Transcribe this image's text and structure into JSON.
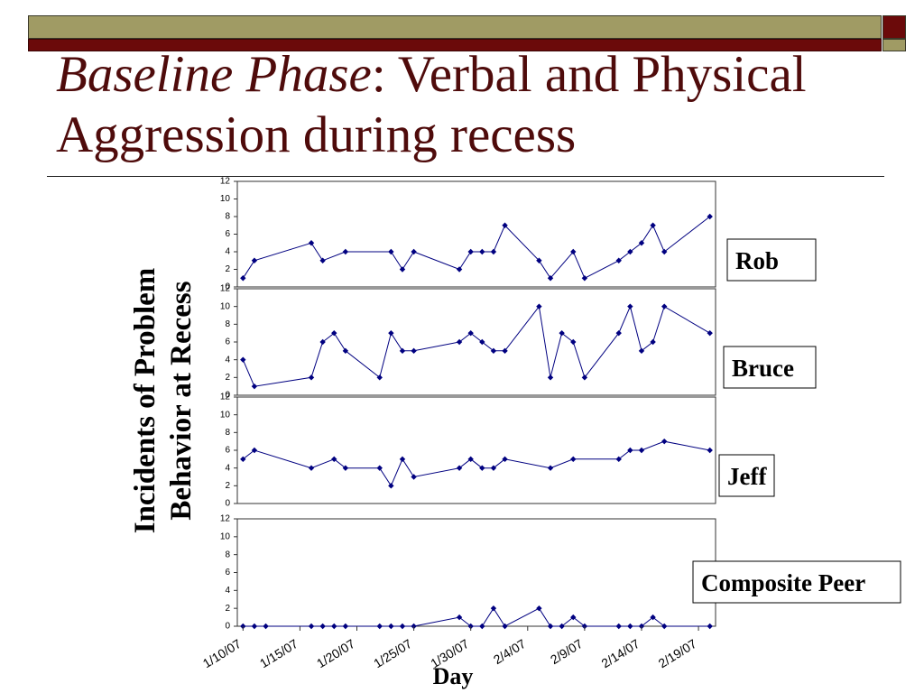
{
  "slide": {
    "title_italic": "Baseline Phase",
    "title_rest": ": Verbal and Physical Aggression during recess"
  },
  "colors": {
    "title": "#4f0b0b",
    "header_olive": "#a09b64",
    "header_maroon": "#6b0a0a",
    "series": "#000080"
  },
  "chart_data": {
    "type": "line",
    "xlabel": "Day",
    "ylabel": [
      "Incidents of Problem",
      "Behavior at Recess"
    ],
    "xlim": [
      "1/10/07",
      "2/20/07"
    ],
    "ylim": [
      0,
      12
    ],
    "x_ticks": [
      "1/10/07",
      "1/15/07",
      "1/20/07",
      "1/25/07",
      "1/30/07",
      "2/4/07",
      "2/9/07",
      "2/14/07",
      "2/19/07"
    ],
    "y_ticks": [
      0,
      2,
      4,
      6,
      8,
      10,
      12
    ],
    "grid": false,
    "series": [
      {
        "name": "Rob",
        "x": [
          "1/10/07",
          "1/11/07",
          "1/16/07",
          "1/17/07",
          "1/19/07",
          "1/23/07",
          "1/24/07",
          "1/25/07",
          "1/29/07",
          "1/30/07",
          "1/31/07",
          "2/1/07",
          "2/2/07",
          "2/5/07",
          "2/6/07",
          "2/8/07",
          "2/9/07",
          "2/12/07",
          "2/13/07",
          "2/14/07",
          "2/15/07",
          "2/16/07",
          "2/20/07"
        ],
        "values": [
          1,
          3,
          5,
          3,
          4,
          4,
          2,
          4,
          2,
          4,
          4,
          4,
          7,
          3,
          1,
          4,
          1,
          3,
          4,
          5,
          7,
          4,
          8
        ]
      },
      {
        "name": "Bruce",
        "x": [
          "1/10/07",
          "1/11/07",
          "1/16/07",
          "1/17/07",
          "1/18/07",
          "1/19/07",
          "1/22/07",
          "1/23/07",
          "1/24/07",
          "1/25/07",
          "1/29/07",
          "1/30/07",
          "1/31/07",
          "2/1/07",
          "2/2/07",
          "2/5/07",
          "2/6/07",
          "2/7/07",
          "2/8/07",
          "2/9/07",
          "2/12/07",
          "2/13/07",
          "2/14/07",
          "2/15/07",
          "2/16/07",
          "2/20/07"
        ],
        "values": [
          4,
          1,
          2,
          6,
          7,
          5,
          2,
          7,
          5,
          5,
          6,
          7,
          6,
          5,
          5,
          10,
          2,
          7,
          6,
          2,
          7,
          10,
          5,
          6,
          10,
          7
        ]
      },
      {
        "name": "Jeff",
        "x": [
          "1/10/07",
          "1/11/07",
          "1/16/07",
          "1/18/07",
          "1/19/07",
          "1/22/07",
          "1/23/07",
          "1/24/07",
          "1/25/07",
          "1/29/07",
          "1/30/07",
          "1/31/07",
          "2/1/07",
          "2/2/07",
          "2/6/07",
          "2/8/07",
          "2/12/07",
          "2/13/07",
          "2/14/07",
          "2/16/07",
          "2/20/07"
        ],
        "values": [
          5,
          6,
          4,
          5,
          4,
          4,
          2,
          5,
          3,
          4,
          5,
          4,
          4,
          5,
          4,
          5,
          5,
          6,
          6,
          7,
          6
        ]
      },
      {
        "name": "Composite Peer",
        "x": [
          "1/10/07",
          "1/11/07",
          "1/12/07",
          "1/16/07",
          "1/17/07",
          "1/18/07",
          "1/19/07",
          "1/22/07",
          "1/23/07",
          "1/24/07",
          "1/25/07",
          "1/29/07",
          "1/30/07",
          "1/31/07",
          "2/1/07",
          "2/2/07",
          "2/5/07",
          "2/6/07",
          "2/7/07",
          "2/8/07",
          "2/9/07",
          "2/12/07",
          "2/13/07",
          "2/14/07",
          "2/15/07",
          "2/16/07",
          "2/20/07"
        ],
        "values": [
          0,
          0,
          0,
          0,
          0,
          0,
          0,
          0,
          0,
          0,
          0,
          1,
          0,
          0,
          2,
          0,
          2,
          0,
          0,
          1,
          0,
          0,
          0,
          0,
          1,
          0,
          0
        ]
      }
    ]
  }
}
